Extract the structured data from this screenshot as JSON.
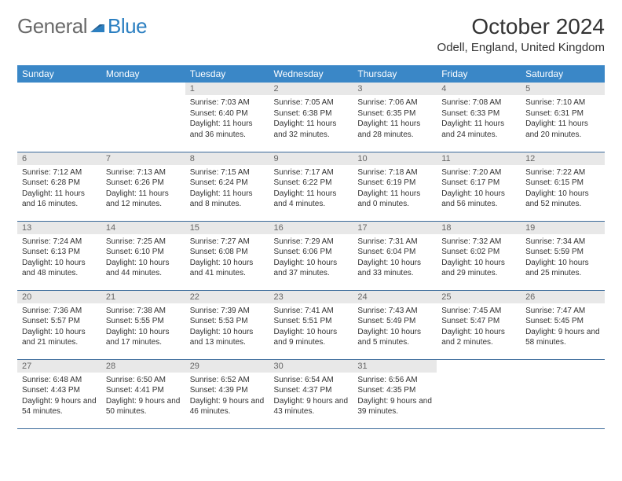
{
  "logo": {
    "word1": "General",
    "word2": "Blue"
  },
  "title": "October 2024",
  "location": "Odell, England, United Kingdom",
  "colors": {
    "header_bg": "#3a87c7",
    "row_border": "#3a6a9a",
    "daynum_bg": "#e8e8e8"
  },
  "weekdays": [
    "Sunday",
    "Monday",
    "Tuesday",
    "Wednesday",
    "Thursday",
    "Friday",
    "Saturday"
  ],
  "weeks": [
    [
      null,
      null,
      {
        "n": "1",
        "sr": "Sunrise: 7:03 AM",
        "ss": "Sunset: 6:40 PM",
        "dl": "Daylight: 11 hours and 36 minutes."
      },
      {
        "n": "2",
        "sr": "Sunrise: 7:05 AM",
        "ss": "Sunset: 6:38 PM",
        "dl": "Daylight: 11 hours and 32 minutes."
      },
      {
        "n": "3",
        "sr": "Sunrise: 7:06 AM",
        "ss": "Sunset: 6:35 PM",
        "dl": "Daylight: 11 hours and 28 minutes."
      },
      {
        "n": "4",
        "sr": "Sunrise: 7:08 AM",
        "ss": "Sunset: 6:33 PM",
        "dl": "Daylight: 11 hours and 24 minutes."
      },
      {
        "n": "5",
        "sr": "Sunrise: 7:10 AM",
        "ss": "Sunset: 6:31 PM",
        "dl": "Daylight: 11 hours and 20 minutes."
      }
    ],
    [
      {
        "n": "6",
        "sr": "Sunrise: 7:12 AM",
        "ss": "Sunset: 6:28 PM",
        "dl": "Daylight: 11 hours and 16 minutes."
      },
      {
        "n": "7",
        "sr": "Sunrise: 7:13 AM",
        "ss": "Sunset: 6:26 PM",
        "dl": "Daylight: 11 hours and 12 minutes."
      },
      {
        "n": "8",
        "sr": "Sunrise: 7:15 AM",
        "ss": "Sunset: 6:24 PM",
        "dl": "Daylight: 11 hours and 8 minutes."
      },
      {
        "n": "9",
        "sr": "Sunrise: 7:17 AM",
        "ss": "Sunset: 6:22 PM",
        "dl": "Daylight: 11 hours and 4 minutes."
      },
      {
        "n": "10",
        "sr": "Sunrise: 7:18 AM",
        "ss": "Sunset: 6:19 PM",
        "dl": "Daylight: 11 hours and 0 minutes."
      },
      {
        "n": "11",
        "sr": "Sunrise: 7:20 AM",
        "ss": "Sunset: 6:17 PM",
        "dl": "Daylight: 10 hours and 56 minutes."
      },
      {
        "n": "12",
        "sr": "Sunrise: 7:22 AM",
        "ss": "Sunset: 6:15 PM",
        "dl": "Daylight: 10 hours and 52 minutes."
      }
    ],
    [
      {
        "n": "13",
        "sr": "Sunrise: 7:24 AM",
        "ss": "Sunset: 6:13 PM",
        "dl": "Daylight: 10 hours and 48 minutes."
      },
      {
        "n": "14",
        "sr": "Sunrise: 7:25 AM",
        "ss": "Sunset: 6:10 PM",
        "dl": "Daylight: 10 hours and 44 minutes."
      },
      {
        "n": "15",
        "sr": "Sunrise: 7:27 AM",
        "ss": "Sunset: 6:08 PM",
        "dl": "Daylight: 10 hours and 41 minutes."
      },
      {
        "n": "16",
        "sr": "Sunrise: 7:29 AM",
        "ss": "Sunset: 6:06 PM",
        "dl": "Daylight: 10 hours and 37 minutes."
      },
      {
        "n": "17",
        "sr": "Sunrise: 7:31 AM",
        "ss": "Sunset: 6:04 PM",
        "dl": "Daylight: 10 hours and 33 minutes."
      },
      {
        "n": "18",
        "sr": "Sunrise: 7:32 AM",
        "ss": "Sunset: 6:02 PM",
        "dl": "Daylight: 10 hours and 29 minutes."
      },
      {
        "n": "19",
        "sr": "Sunrise: 7:34 AM",
        "ss": "Sunset: 5:59 PM",
        "dl": "Daylight: 10 hours and 25 minutes."
      }
    ],
    [
      {
        "n": "20",
        "sr": "Sunrise: 7:36 AM",
        "ss": "Sunset: 5:57 PM",
        "dl": "Daylight: 10 hours and 21 minutes."
      },
      {
        "n": "21",
        "sr": "Sunrise: 7:38 AM",
        "ss": "Sunset: 5:55 PM",
        "dl": "Daylight: 10 hours and 17 minutes."
      },
      {
        "n": "22",
        "sr": "Sunrise: 7:39 AM",
        "ss": "Sunset: 5:53 PM",
        "dl": "Daylight: 10 hours and 13 minutes."
      },
      {
        "n": "23",
        "sr": "Sunrise: 7:41 AM",
        "ss": "Sunset: 5:51 PM",
        "dl": "Daylight: 10 hours and 9 minutes."
      },
      {
        "n": "24",
        "sr": "Sunrise: 7:43 AM",
        "ss": "Sunset: 5:49 PM",
        "dl": "Daylight: 10 hours and 5 minutes."
      },
      {
        "n": "25",
        "sr": "Sunrise: 7:45 AM",
        "ss": "Sunset: 5:47 PM",
        "dl": "Daylight: 10 hours and 2 minutes."
      },
      {
        "n": "26",
        "sr": "Sunrise: 7:47 AM",
        "ss": "Sunset: 5:45 PM",
        "dl": "Daylight: 9 hours and 58 minutes."
      }
    ],
    [
      {
        "n": "27",
        "sr": "Sunrise: 6:48 AM",
        "ss": "Sunset: 4:43 PM",
        "dl": "Daylight: 9 hours and 54 minutes."
      },
      {
        "n": "28",
        "sr": "Sunrise: 6:50 AM",
        "ss": "Sunset: 4:41 PM",
        "dl": "Daylight: 9 hours and 50 minutes."
      },
      {
        "n": "29",
        "sr": "Sunrise: 6:52 AM",
        "ss": "Sunset: 4:39 PM",
        "dl": "Daylight: 9 hours and 46 minutes."
      },
      {
        "n": "30",
        "sr": "Sunrise: 6:54 AM",
        "ss": "Sunset: 4:37 PM",
        "dl": "Daylight: 9 hours and 43 minutes."
      },
      {
        "n": "31",
        "sr": "Sunrise: 6:56 AM",
        "ss": "Sunset: 4:35 PM",
        "dl": "Daylight: 9 hours and 39 minutes."
      },
      null,
      null
    ]
  ]
}
